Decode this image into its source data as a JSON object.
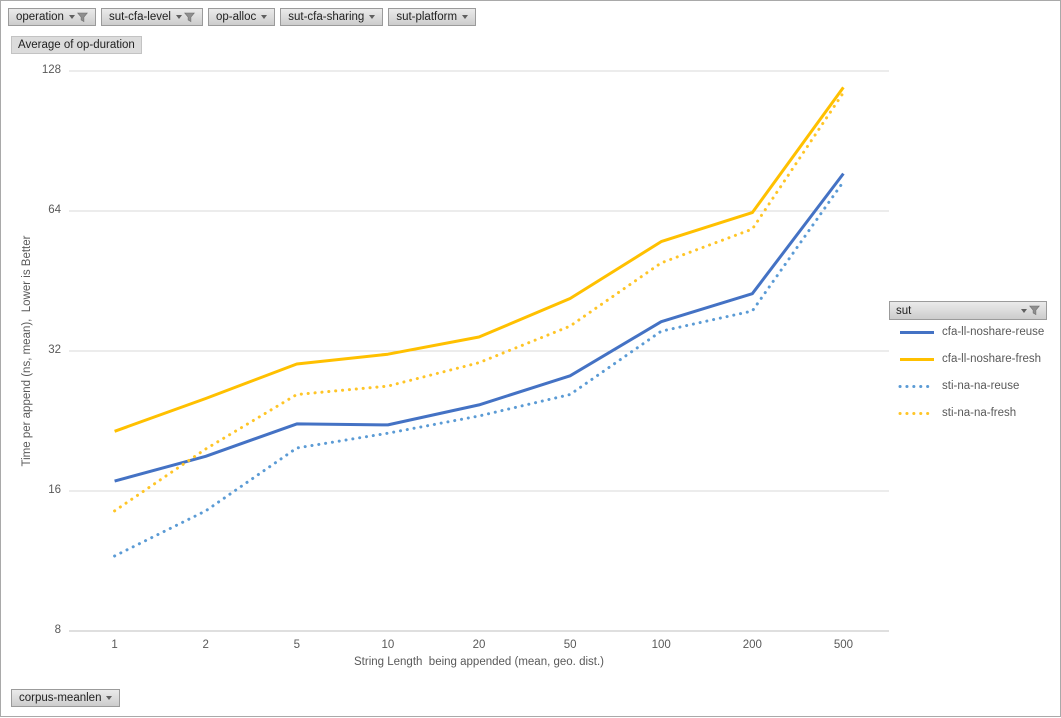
{
  "field_buttons": [
    {
      "label": "operation",
      "filtered": true
    },
    {
      "label": "sut-cfa-level",
      "filtered": true
    },
    {
      "label": "op-alloc",
      "filtered": false
    },
    {
      "label": "sut-cfa-sharing",
      "filtered": false
    },
    {
      "label": "sut-platform",
      "filtered": false
    }
  ],
  "value_field": "Average of op-duration",
  "axis_field": "corpus-meanlen",
  "legend_field": "sut",
  "colors": {
    "grid": "#d9d9d9",
    "axis_line": "#bfbfbf",
    "text": "#595959",
    "blue_solid": "#4472c4",
    "yellow_solid": "#ffc000",
    "blue_dotted": "#5b9bd5",
    "yellow_dotted": "#ffc527"
  },
  "chart_data": {
    "type": "line",
    "title": "",
    "xlabel": "String Length  being appended (mean, geo. dist.)",
    "ylabel": "Time per append (ns, mean),  Lower is Better",
    "x_scale": "categorical",
    "y_scale": "log2",
    "ylim": [
      8,
      128
    ],
    "y_ticks": [
      128,
      64,
      32,
      16,
      8
    ],
    "grid": "horizontal",
    "legend_position": "right",
    "categories": [
      1,
      2,
      5,
      10,
      20,
      50,
      100,
      200,
      500
    ],
    "series": [
      {
        "name": "cfa-ll-noshare-reuse",
        "color": "#4472c4",
        "style": "solid",
        "values": [
          16.8,
          19.0,
          22.3,
          22.2,
          24.5,
          28.3,
          37,
          42.5,
          77
        ]
      },
      {
        "name": "cfa-ll-noshare-fresh",
        "color": "#ffc000",
        "style": "solid",
        "values": [
          21.5,
          25.3,
          30,
          31.5,
          34.3,
          41.5,
          55,
          63.5,
          118
        ]
      },
      {
        "name": "sti-na-na-reuse",
        "color": "#5b9bd5",
        "style": "dotted",
        "values": [
          11.6,
          14.5,
          19.8,
          21.3,
          23.2,
          25.8,
          35.3,
          39,
          74
        ]
      },
      {
        "name": "sti-na-na-fresh",
        "color": "#ffc527",
        "style": "dotted",
        "values": [
          14.5,
          19.7,
          25.8,
          26.9,
          30.2,
          36.2,
          49.5,
          58.5,
          115
        ]
      }
    ]
  }
}
